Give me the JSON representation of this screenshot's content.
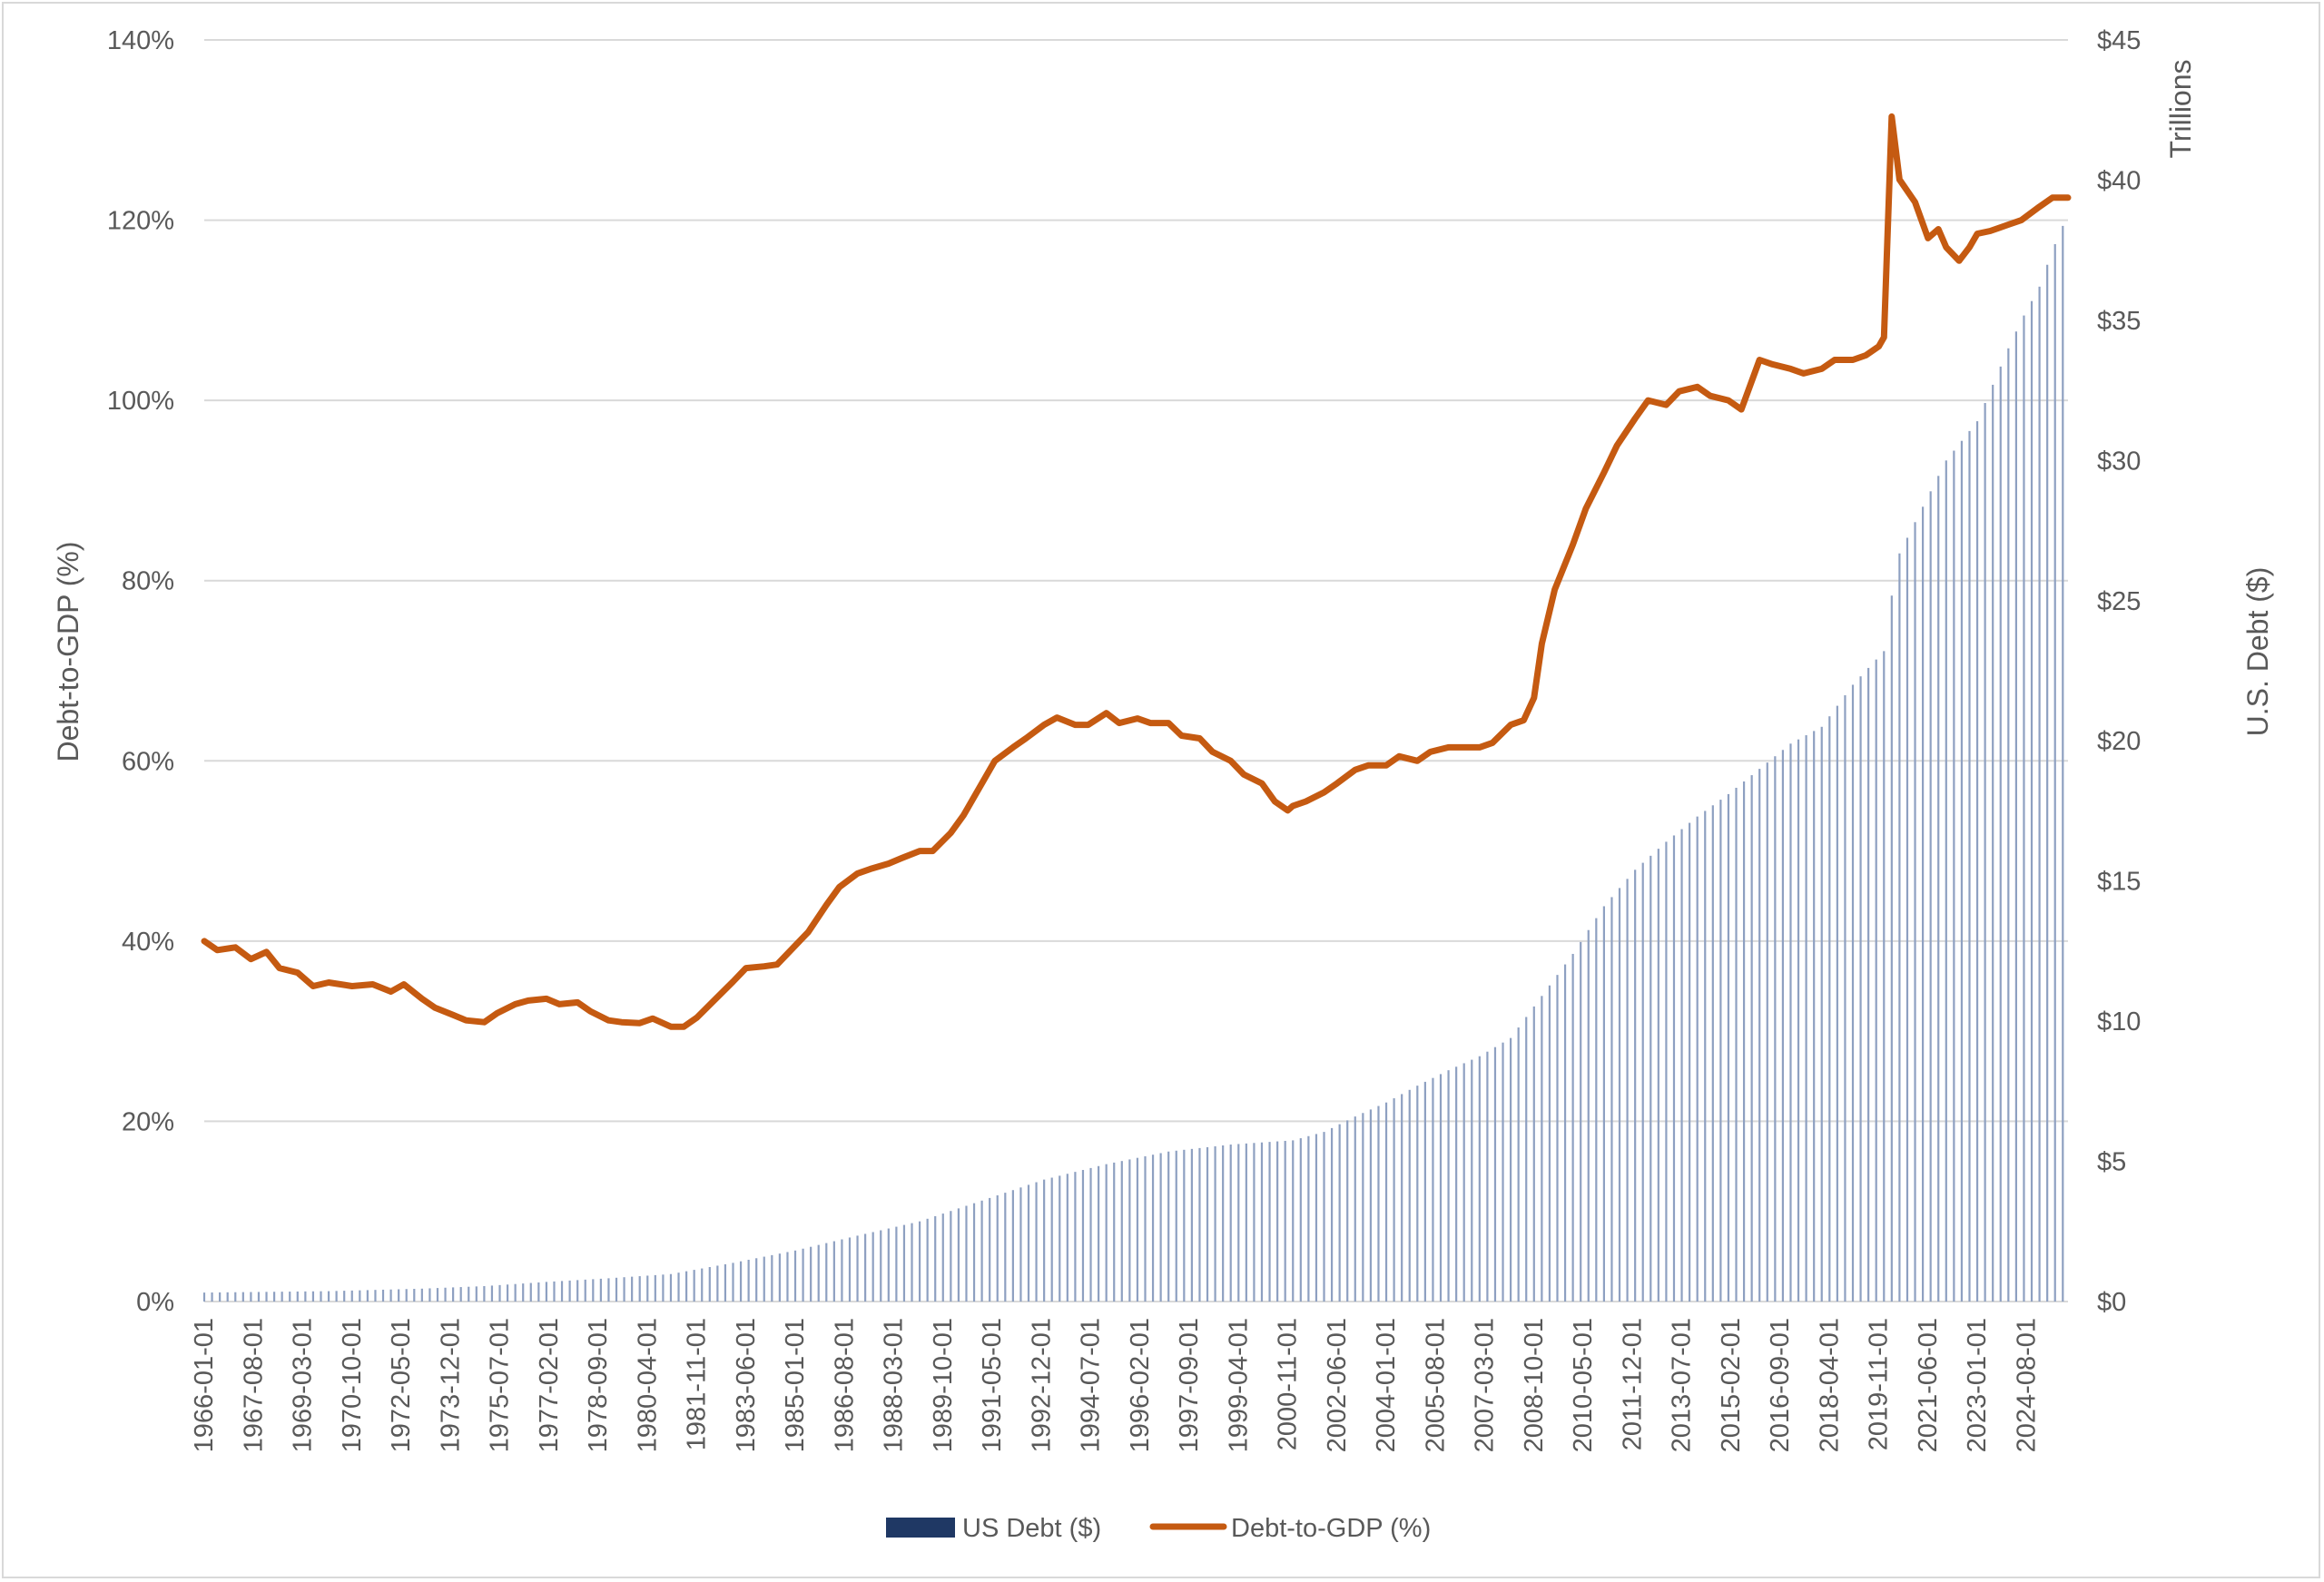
{
  "chart_data": {
    "type": "bar+line",
    "title": "",
    "y_left": {
      "label": "Debt-to-GDP (%)",
      "range": [
        0,
        140
      ],
      "ticks": [
        "0%",
        "20%",
        "40%",
        "60%",
        "80%",
        "100%",
        "120%",
        "140%"
      ]
    },
    "y_right": {
      "label": "U.S. Debt ($)",
      "unit_label": "Trillions",
      "range": [
        0,
        45
      ],
      "ticks": [
        "$0",
        "$5",
        "$10",
        "$15",
        "$20",
        "$25",
        "$30",
        "$35",
        "$40",
        "$45"
      ]
    },
    "x_tick_labels": [
      "1966-01-01",
      "1967-08-01",
      "1969-03-01",
      "1970-10-01",
      "1972-05-01",
      "1973-12-01",
      "1975-07-01",
      "1977-02-01",
      "1978-09-01",
      "1980-04-01",
      "1981-11-01",
      "1983-06-01",
      "1985-01-01",
      "1986-08-01",
      "1988-03-01",
      "1989-10-01",
      "1991-05-01",
      "1992-12-01",
      "1994-07-01",
      "1996-02-01",
      "1997-09-01",
      "1999-04-01",
      "2000-11-01",
      "2002-06-01",
      "2004-01-01",
      "2005-08-01",
      "2007-03-01",
      "2008-10-01",
      "2010-05-01",
      "2011-12-01",
      "2013-07-01",
      "2015-02-01",
      "2016-09-01",
      "2018-04-01",
      "2019-11-01",
      "2021-06-01",
      "2023-01-01",
      "2024-08-01"
    ],
    "legend": {
      "position": "bottom",
      "items": [
        {
          "label": "US Debt ($)",
          "color": "#1f3864",
          "kind": "bar"
        },
        {
          "label": "Debt-to-GDP (%)",
          "color": "#c55a11",
          "kind": "line"
        }
      ]
    },
    "grid": true,
    "series": [
      {
        "name": "US Debt ($)",
        "axis": "right",
        "type": "bar",
        "color": "#1f3864",
        "points": [
          [
            "1966-01-01",
            0.32
          ],
          [
            "1970-01-01",
            0.37
          ],
          [
            "1973-01-01",
            0.46
          ],
          [
            "1975-01-01",
            0.55
          ],
          [
            "1977-01-01",
            0.7
          ],
          [
            "1979-01-01",
            0.83
          ],
          [
            "1981-01-01",
            0.98
          ],
          [
            "1983-01-01",
            1.38
          ],
          [
            "1985-01-01",
            1.82
          ],
          [
            "1987-01-01",
            2.35
          ],
          [
            "1989-01-01",
            2.86
          ],
          [
            "1991-01-01",
            3.6
          ],
          [
            "1993-01-01",
            4.35
          ],
          [
            "1995-01-01",
            4.9
          ],
          [
            "1997-01-01",
            5.35
          ],
          [
            "1999-01-01",
            5.6
          ],
          [
            "2001-01-01",
            5.75
          ],
          [
            "2002-01-01",
            6.05
          ],
          [
            "2003-01-01",
            6.6
          ],
          [
            "2004-01-01",
            7.1
          ],
          [
            "2005-01-01",
            7.7
          ],
          [
            "2006-01-01",
            8.25
          ],
          [
            "2007-01-01",
            8.75
          ],
          [
            "2008-01-01",
            9.4
          ],
          [
            "2009-01-01",
            10.9
          ],
          [
            "2010-01-01",
            12.4
          ],
          [
            "2011-01-01",
            14.1
          ],
          [
            "2012-01-01",
            15.4
          ],
          [
            "2013-01-01",
            16.4
          ],
          [
            "2014-01-01",
            17.3
          ],
          [
            "2015-01-01",
            18.1
          ],
          [
            "2016-01-01",
            19.0
          ],
          [
            "2017-01-01",
            19.9
          ],
          [
            "2018-01-01",
            20.5
          ],
          [
            "2019-01-01",
            22.0
          ],
          [
            "2020-01-01",
            23.2
          ],
          [
            "2020-06-01",
            26.5
          ],
          [
            "2021-01-01",
            27.8
          ],
          [
            "2022-01-01",
            30.0
          ],
          [
            "2023-01-01",
            31.4
          ],
          [
            "2024-01-01",
            34.0
          ],
          [
            "2024-06-01",
            35.0
          ],
          [
            "2025-01-01",
            36.2
          ],
          [
            "2025-06-01",
            37.5
          ],
          [
            "2025-12-01",
            38.8
          ]
        ]
      },
      {
        "name": "Debt-to-GDP (%)",
        "axis": "left",
        "type": "line",
        "color": "#c55a11",
        "points": [
          [
            "1966-01-01",
            40.0
          ],
          [
            "1966-06-01",
            39.0
          ],
          [
            "1967-01-01",
            39.3
          ],
          [
            "1967-07-01",
            38.0
          ],
          [
            "1968-01-01",
            38.8
          ],
          [
            "1968-06-01",
            37.0
          ],
          [
            "1969-01-01",
            36.5
          ],
          [
            "1969-07-01",
            35.0
          ],
          [
            "1970-01-01",
            35.4
          ],
          [
            "1970-10-01",
            35.0
          ],
          [
            "1971-06-01",
            35.2
          ],
          [
            "1972-01-01",
            34.4
          ],
          [
            "1972-06-01",
            35.2
          ],
          [
            "1973-01-01",
            33.6
          ],
          [
            "1973-06-01",
            32.6
          ],
          [
            "1974-01-01",
            31.8
          ],
          [
            "1974-06-01",
            31.2
          ],
          [
            "1975-01-01",
            31.0
          ],
          [
            "1975-06-01",
            32.0
          ],
          [
            "1976-01-01",
            33.0
          ],
          [
            "1976-06-01",
            33.4
          ],
          [
            "1977-01-01",
            33.6
          ],
          [
            "1977-06-01",
            33.0
          ],
          [
            "1978-01-01",
            33.2
          ],
          [
            "1978-06-01",
            32.2
          ],
          [
            "1979-01-01",
            31.2
          ],
          [
            "1979-06-01",
            31.0
          ],
          [
            "1980-01-01",
            30.9
          ],
          [
            "1980-06-01",
            31.4
          ],
          [
            "1981-01-01",
            30.5
          ],
          [
            "1981-06-01",
            30.5
          ],
          [
            "1981-11-01",
            31.5
          ],
          [
            "1982-06-01",
            33.5
          ],
          [
            "1983-01-01",
            35.5
          ],
          [
            "1983-06-01",
            37.0
          ],
          [
            "1984-01-01",
            37.2
          ],
          [
            "1984-06-01",
            37.4
          ],
          [
            "1985-01-01",
            39.5
          ],
          [
            "1985-06-01",
            41.0
          ],
          [
            "1986-01-01",
            44.0
          ],
          [
            "1986-06-01",
            46.0
          ],
          [
            "1987-01-01",
            47.5
          ],
          [
            "1987-06-01",
            48.0
          ],
          [
            "1988-01-01",
            48.6
          ],
          [
            "1988-06-01",
            49.2
          ],
          [
            "1989-01-01",
            50.0
          ],
          [
            "1989-06-01",
            50.0
          ],
          [
            "1990-01-01",
            52.0
          ],
          [
            "1990-06-01",
            54.0
          ],
          [
            "1991-01-01",
            57.5
          ],
          [
            "1991-06-01",
            60.0
          ],
          [
            "1992-01-01",
            61.5
          ],
          [
            "1992-06-01",
            62.5
          ],
          [
            "1993-01-01",
            64.0
          ],
          [
            "1993-06-01",
            64.8
          ],
          [
            "1994-01-01",
            64.0
          ],
          [
            "1994-06-01",
            64.0
          ],
          [
            "1995-01-01",
            65.3
          ],
          [
            "1995-06-01",
            64.2
          ],
          [
            "1996-01-01",
            64.7
          ],
          [
            "1996-06-01",
            64.2
          ],
          [
            "1997-01-01",
            64.2
          ],
          [
            "1997-06-01",
            62.8
          ],
          [
            "1998-01-01",
            62.5
          ],
          [
            "1998-06-01",
            61.0
          ],
          [
            "1999-01-01",
            60.0
          ],
          [
            "1999-06-01",
            58.5
          ],
          [
            "2000-01-01",
            57.5
          ],
          [
            "2000-06-01",
            55.5
          ],
          [
            "2000-11-01",
            54.5
          ],
          [
            "2001-01-01",
            55.0
          ],
          [
            "2001-06-01",
            55.5
          ],
          [
            "2002-01-01",
            56.5
          ],
          [
            "2002-06-01",
            57.5
          ],
          [
            "2003-01-01",
            59.0
          ],
          [
            "2003-06-01",
            59.5
          ],
          [
            "2004-01-01",
            59.5
          ],
          [
            "2004-06-01",
            60.5
          ],
          [
            "2005-01-01",
            60.0
          ],
          [
            "2005-06-01",
            61.0
          ],
          [
            "2006-01-01",
            61.5
          ],
          [
            "2006-06-01",
            61.5
          ],
          [
            "2007-01-01",
            61.5
          ],
          [
            "2007-06-01",
            62.0
          ],
          [
            "2008-01-01",
            64.0
          ],
          [
            "2008-06-01",
            64.5
          ],
          [
            "2008-10-01",
            67.0
          ],
          [
            "2009-01-01",
            73.0
          ],
          [
            "2009-06-01",
            79.0
          ],
          [
            "2010-01-01",
            84.0
          ],
          [
            "2010-06-01",
            88.0
          ],
          [
            "2011-01-01",
            92.0
          ],
          [
            "2011-06-01",
            95.0
          ],
          [
            "2012-01-01",
            98.0
          ],
          [
            "2012-06-01",
            100.0
          ],
          [
            "2013-01-01",
            99.5
          ],
          [
            "2013-06-01",
            101.0
          ],
          [
            "2014-01-01",
            101.5
          ],
          [
            "2014-06-01",
            100.5
          ],
          [
            "2015-01-01",
            100.0
          ],
          [
            "2015-06-01",
            99.0
          ],
          [
            "2016-01-01",
            104.5
          ],
          [
            "2016-06-01",
            104.0
          ],
          [
            "2017-01-01",
            103.5
          ],
          [
            "2017-06-01",
            103.0
          ],
          [
            "2018-01-01",
            103.5
          ],
          [
            "2018-06-01",
            104.5
          ],
          [
            "2019-01-01",
            104.5
          ],
          [
            "2019-06-01",
            105.0
          ],
          [
            "2019-11-01",
            106.0
          ],
          [
            "2020-01-01",
            107.0
          ],
          [
            "2020-04-01",
            131.5
          ],
          [
            "2020-07-01",
            124.5
          ],
          [
            "2021-01-01",
            122.0
          ],
          [
            "2021-06-01",
            118.0
          ],
          [
            "2021-10-01",
            119.0
          ],
          [
            "2022-01-01",
            117.0
          ],
          [
            "2022-06-01",
            115.5
          ],
          [
            "2022-10-01",
            117.0
          ],
          [
            "2023-01-01",
            118.5
          ],
          [
            "2023-06-01",
            118.8
          ],
          [
            "2024-01-01",
            119.5
          ],
          [
            "2024-06-01",
            120.0
          ],
          [
            "2025-01-01",
            121.5
          ],
          [
            "2025-06-01",
            122.5
          ],
          [
            "2025-12-01",
            122.5
          ]
        ]
      }
    ]
  }
}
